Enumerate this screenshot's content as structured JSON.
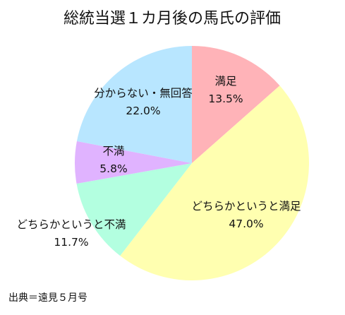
{
  "chart_data": {
    "type": "pie",
    "title": "総統当選１カ月後の馬氏の評価",
    "slices": [
      {
        "label": "満足",
        "value": 13.5,
        "value_text": "13.5%",
        "color": "#ffb3b8"
      },
      {
        "label": "どちらかというと満足",
        "value": 47.0,
        "value_text": "47.0%",
        "color": "#ffffb0"
      },
      {
        "label": "どちらかというと不満",
        "value": 11.7,
        "value_text": "11.7%",
        "color": "#b3ffe0"
      },
      {
        "label": "不満",
        "value": 5.8,
        "value_text": "5.8%",
        "color": "#e0b3ff"
      },
      {
        "label": "分からない・無回答",
        "value": 22.0,
        "value_text": "22.0%",
        "color": "#b8e6ff"
      }
    ],
    "start": "12 o'clock",
    "direction": "clockwise",
    "legend": "none",
    "source": "出典＝遠見５月号"
  }
}
